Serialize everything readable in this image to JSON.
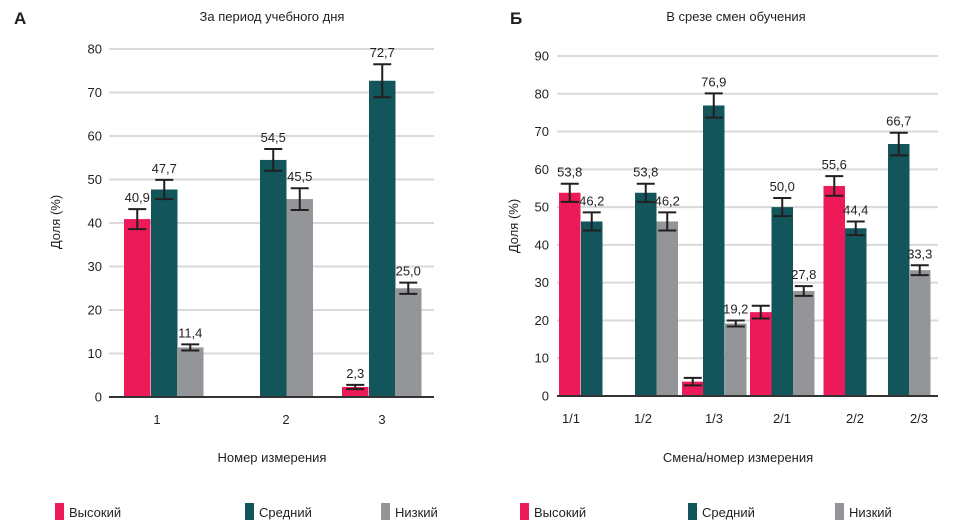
{
  "colors": {
    "high": "#ec1a58",
    "medium": "#12555a",
    "low": "#939598"
  },
  "legend": [
    {
      "label": "Высокий",
      "key": "high"
    },
    {
      "label": "Средний",
      "key": "medium"
    },
    {
      "label": "Низкий",
      "key": "low"
    },
    {
      "label": "Высокий",
      "key": "high"
    },
    {
      "label": "Средний",
      "key": "medium"
    },
    {
      "label": "Низкий",
      "key": "low"
    }
  ],
  "chart_data": [
    {
      "panel": "А",
      "type": "bar",
      "title": "За период учебного дня",
      "xlabel": "Номер измерения",
      "ylabel": "Доля (%)",
      "ylim": [
        0,
        80
      ],
      "yticks": [
        0,
        10,
        20,
        30,
        40,
        50,
        60,
        70,
        80
      ],
      "grid": true,
      "categories": [
        "1",
        "2",
        "3"
      ],
      "series": [
        {
          "name": "Высокий",
          "key": "high",
          "values": [
            40.9,
            null,
            2.3
          ],
          "labels": [
            "40,9",
            null,
            "2,3"
          ],
          "err": [
            2.3,
            null,
            0.5
          ]
        },
        {
          "name": "Средний",
          "key": "medium",
          "values": [
            47.7,
            54.5,
            72.7
          ],
          "labels": [
            "47,7",
            "54,5",
            "72,7"
          ],
          "err": [
            2.2,
            2.5,
            3.8
          ]
        },
        {
          "name": "Низкий",
          "key": "low",
          "values": [
            11.4,
            45.5,
            25.0
          ],
          "labels": [
            "11,4",
            "45,5",
            "25,0"
          ],
          "err": [
            0.7,
            2.5,
            1.3
          ]
        }
      ]
    },
    {
      "panel": "Б",
      "type": "bar",
      "title": "В срезе смен обучения",
      "xlabel": "Смена/номер измерения",
      "ylabel": "Доля (%)",
      "ylim": [
        0,
        90
      ],
      "yticks": [
        0,
        10,
        20,
        30,
        40,
        50,
        60,
        70,
        80,
        90
      ],
      "grid": true,
      "categories": [
        "1/1",
        "1/2",
        "1/3",
        "2/1",
        "2/2",
        "2/3"
      ],
      "series": [
        {
          "name": "Высокий",
          "key": "high",
          "values": [
            53.8,
            null,
            3.8,
            22.2,
            55.6,
            null
          ],
          "labels": [
            "53,8",
            null,
            null,
            null,
            "55,6",
            null
          ],
          "err": [
            2.4,
            null,
            1.0,
            1.7,
            2.6,
            null
          ]
        },
        {
          "name": "Средний",
          "key": "medium",
          "values": [
            46.2,
            53.8,
            76.9,
            50.0,
            44.4,
            66.7
          ],
          "labels": [
            "46,2",
            "53,8",
            "76,9",
            "50,0",
            "44,4",
            "66,7"
          ],
          "err": [
            2.4,
            2.4,
            3.2,
            2.4,
            1.8,
            3.0
          ]
        },
        {
          "name": "Низкий",
          "key": "low",
          "values": [
            null,
            46.2,
            19.2,
            27.8,
            null,
            33.3
          ],
          "labels": [
            null,
            "46,2",
            "19,2",
            "27,8",
            null,
            "33,3"
          ],
          "err": [
            null,
            2.4,
            0.8,
            1.3,
            null,
            1.3
          ]
        }
      ]
    }
  ]
}
